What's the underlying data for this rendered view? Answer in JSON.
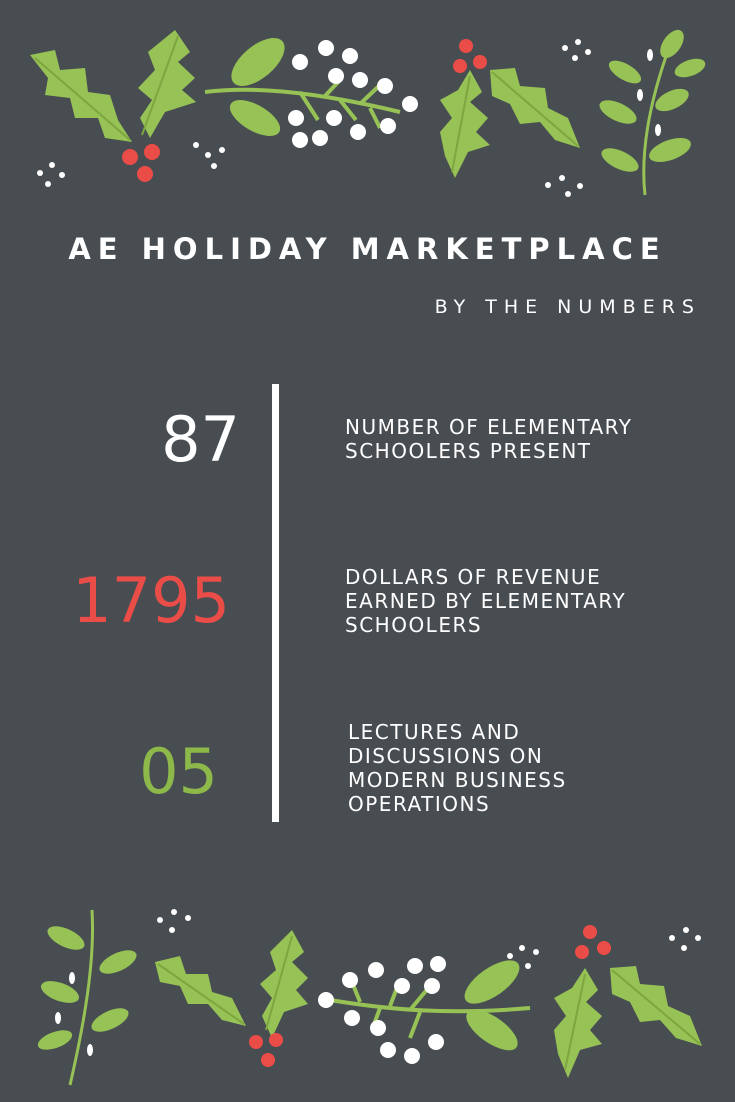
{
  "title": "AE HOLIDAY MARKETPLACE",
  "subtitle": "BY THE NUMBERS",
  "colors": {
    "background": "#484d52",
    "white": "#ffffff",
    "red": "#ea4d48",
    "green": "#8db84a",
    "leaf": "#97c255"
  },
  "stats": [
    {
      "value": "87",
      "color": "#ffffff",
      "lines": [
        "NUMBER OF ELEMENTARY",
        "SCHOOLERS PRESENT"
      ]
    },
    {
      "value": "1795",
      "color": "#ea4d48",
      "lines": [
        "DOLLARS OF REVENUE",
        "EARNED BY ELEMENTARY",
        "SCHOOLERS"
      ]
    },
    {
      "value": "05",
      "color": "#8db84a",
      "lines": [
        "LECTURES AND",
        "DISCUSSIONS ON",
        "MODERN BUSINESS",
        "OPERATIONS"
      ]
    }
  ],
  "decorations": {
    "top": [
      "holly-leaf-icon",
      "mistletoe-icon",
      "white-berries-icon",
      "red-berries-icon",
      "leaf-sprig-icon"
    ],
    "bottom": [
      "leaf-sprig-icon",
      "holly-leaf-icon",
      "white-berries-icon",
      "red-berries-icon",
      "mistletoe-icon"
    ]
  }
}
